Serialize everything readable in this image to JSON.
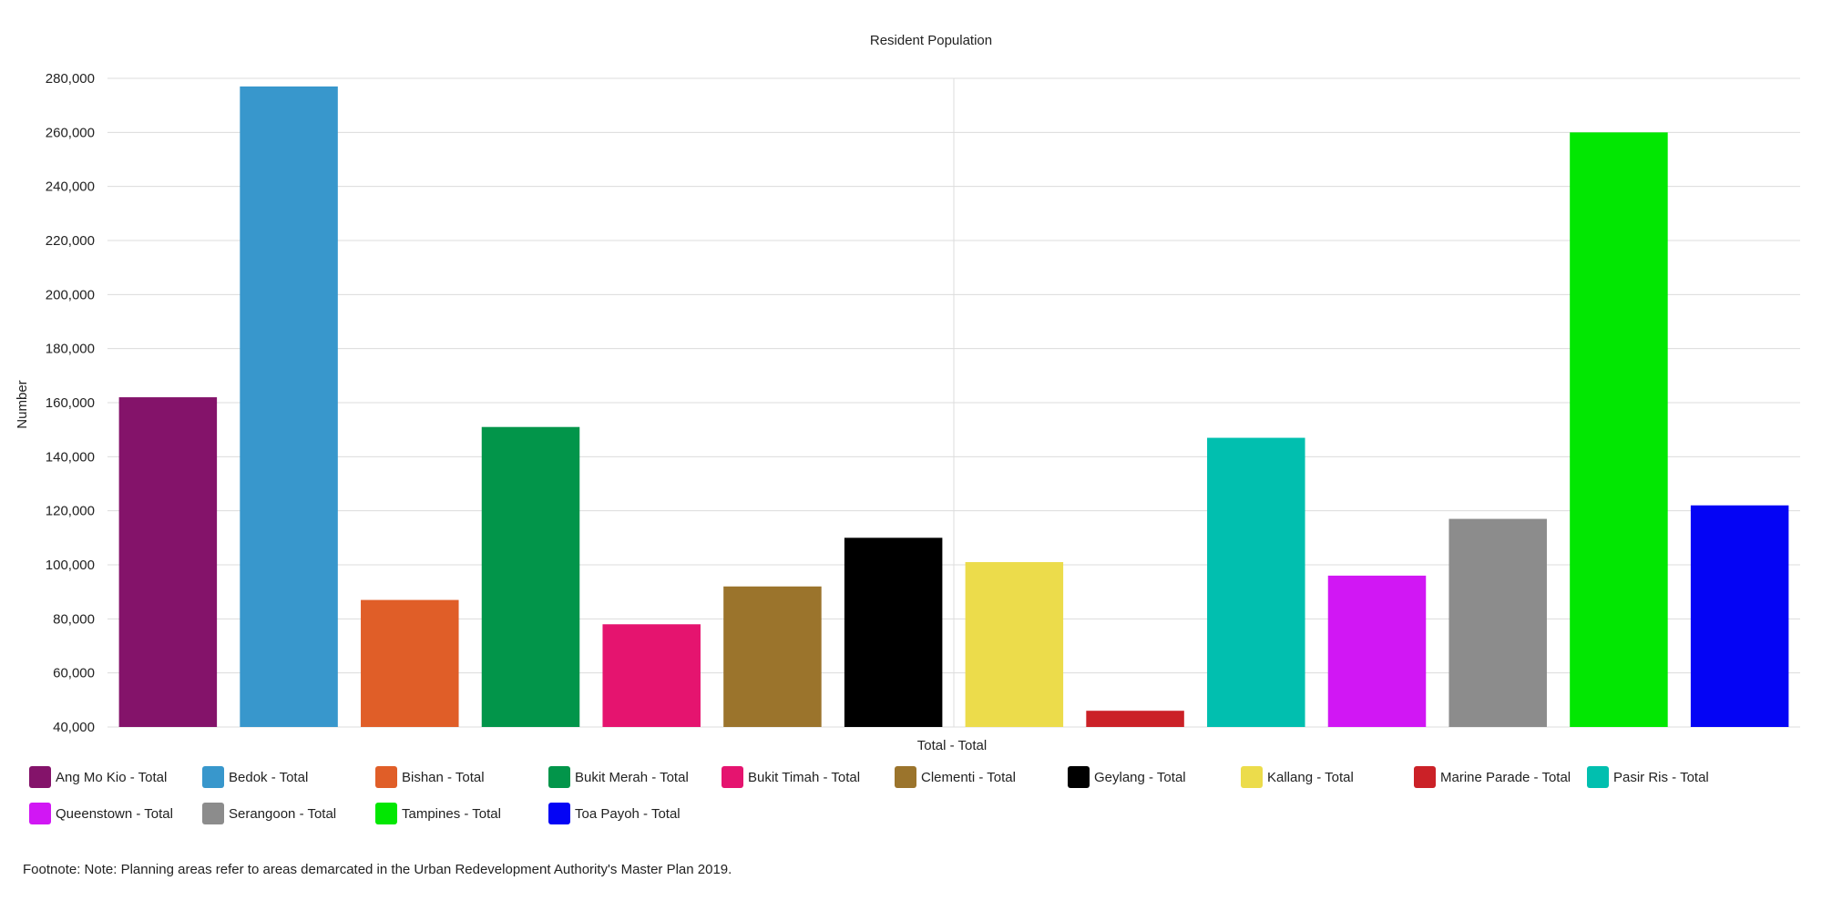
{
  "chart_data": {
    "type": "bar",
    "title": "Resident Population",
    "xlabel": "Total - Total",
    "ylabel": "Number",
    "ylim": [
      40000,
      280000
    ],
    "yticks": [
      40000,
      60000,
      80000,
      100000,
      120000,
      140000,
      160000,
      180000,
      200000,
      220000,
      240000,
      260000,
      280000
    ],
    "ytick_labels": [
      "40,000",
      "60,000",
      "80,000",
      "100,000",
      "120,000",
      "140,000",
      "160,000",
      "180,000",
      "200,000",
      "220,000",
      "240,000",
      "260,000",
      "280,000"
    ],
    "grid": true,
    "legend_position": "bottom",
    "series": [
      {
        "name": "Ang Mo Kio - Total",
        "value": 162000,
        "color": "#84136a"
      },
      {
        "name": "Bedok - Total",
        "value": 277000,
        "color": "#3897cc"
      },
      {
        "name": "Bishan - Total",
        "value": 87000,
        "color": "#e05e28"
      },
      {
        "name": "Bukit Merah - Total",
        "value": 151000,
        "color": "#02954a"
      },
      {
        "name": "Bukit Timah - Total",
        "value": 78000,
        "color": "#e5146f"
      },
      {
        "name": "Clementi - Total",
        "value": 92000,
        "color": "#9b742c"
      },
      {
        "name": "Geylang - Total",
        "value": 110000,
        "color": "#000000"
      },
      {
        "name": "Kallang - Total",
        "value": 101000,
        "color": "#ecdc4b"
      },
      {
        "name": "Marine Parade - Total",
        "value": 46000,
        "color": "#cb2127"
      },
      {
        "name": "Pasir Ris - Total",
        "value": 147000,
        "color": "#01bfaf"
      },
      {
        "name": "Queenstown - Total",
        "value": 96000,
        "color": "#d117f4"
      },
      {
        "name": "Serangoon - Total",
        "value": 117000,
        "color": "#8c8c8c"
      },
      {
        "name": "Tampines - Total",
        "value": 260000,
        "color": "#02e702"
      },
      {
        "name": "Toa Payoh - Total",
        "value": 122000,
        "color": "#0404f5"
      }
    ]
  },
  "footnote": "Footnote: Note: Planning areas refer to areas demarcated in the Urban Redevelopment Authority's Master Plan 2019."
}
